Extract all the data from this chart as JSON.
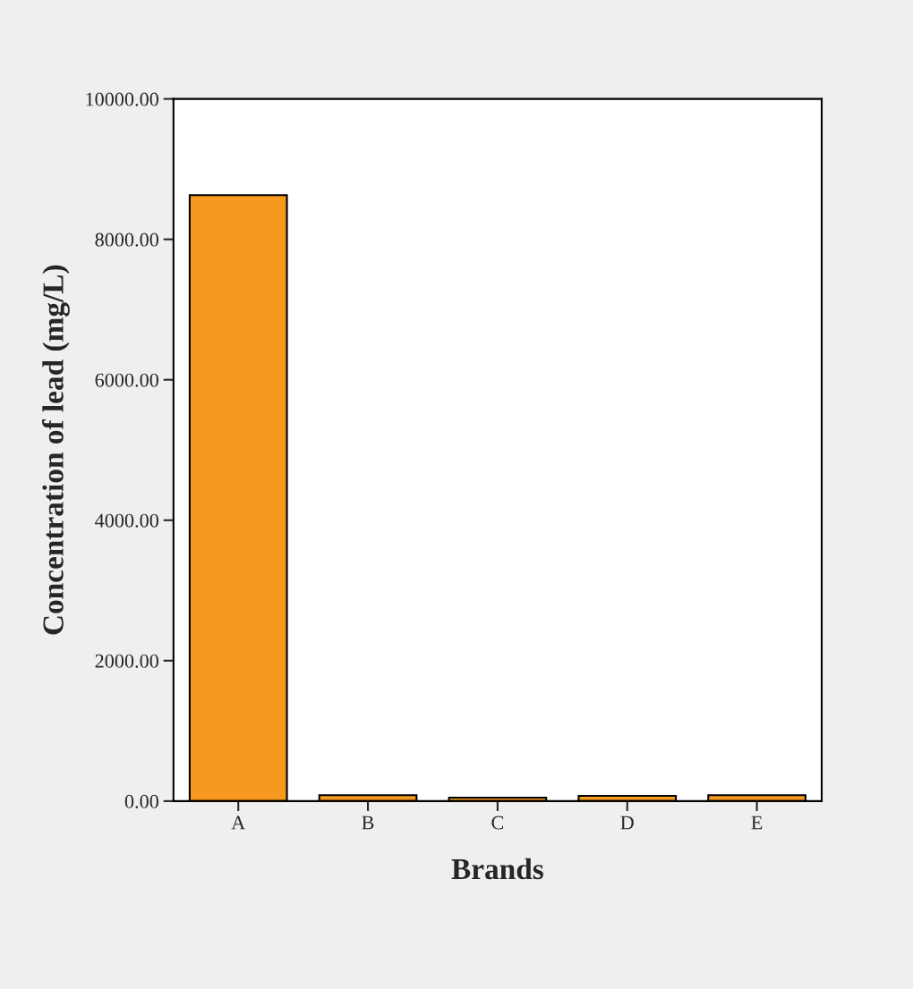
{
  "chart_data": {
    "type": "bar",
    "xlabel": "Brands",
    "ylabel": "Concentration of lead (mg/L)",
    "categories": [
      "A",
      "B",
      "C",
      "D",
      "E"
    ],
    "values": [
      8630,
      85,
      50,
      75,
      85
    ],
    "color": "#f7991f",
    "ylim": [
      0,
      10000
    ],
    "yticks": [
      {
        "value": 0,
        "label": "0.00"
      },
      {
        "value": 2000,
        "label": "2000.00"
      },
      {
        "value": 4000,
        "label": "4000.00"
      },
      {
        "value": 6000,
        "label": "6000.00"
      },
      {
        "value": 8000,
        "label": "8000.00"
      },
      {
        "value": 10000,
        "label": "10000.00"
      }
    ],
    "grid": false
  }
}
